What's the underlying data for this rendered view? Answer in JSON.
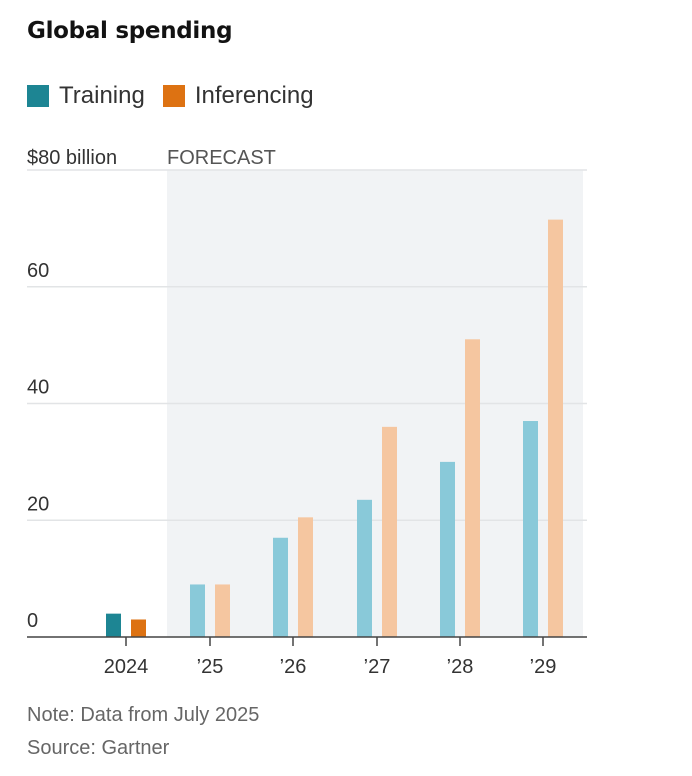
{
  "chart_data": {
    "type": "bar",
    "title": "Global spending",
    "categories": [
      "2024",
      "’25",
      "’26",
      "’27",
      "’28",
      "’29"
    ],
    "series": [
      {
        "name": "Training",
        "values": [
          4,
          9,
          17,
          23.5,
          30,
          37
        ]
      },
      {
        "name": "Inferencing",
        "values": [
          3,
          9,
          20.5,
          36,
          51,
          71.5
        ]
      }
    ],
    "ylim": [
      0,
      80
    ],
    "yticks": [
      {
        "value": 0,
        "label": "0"
      },
      {
        "value": 20,
        "label": "20"
      },
      {
        "value": 40,
        "label": "40"
      },
      {
        "value": 60,
        "label": "60"
      },
      {
        "value": 80,
        "label": "$80 billion"
      }
    ],
    "forecast_label": "FORECAST",
    "forecast_start_index": 1,
    "xlabel": "",
    "ylabel": "",
    "grid": true,
    "legend_position": "top-left"
  },
  "colors": {
    "training": "#1d8593",
    "inferencing": "#dd7212",
    "training_forecast": "#89c9d9",
    "inferencing_forecast": "#f5c6a0",
    "forecast_bg": "#f1f3f5",
    "grid": "#e2e4e6",
    "axis": "#444444"
  },
  "note": "Note: Data from July 2025",
  "source": "Source: Gartner"
}
